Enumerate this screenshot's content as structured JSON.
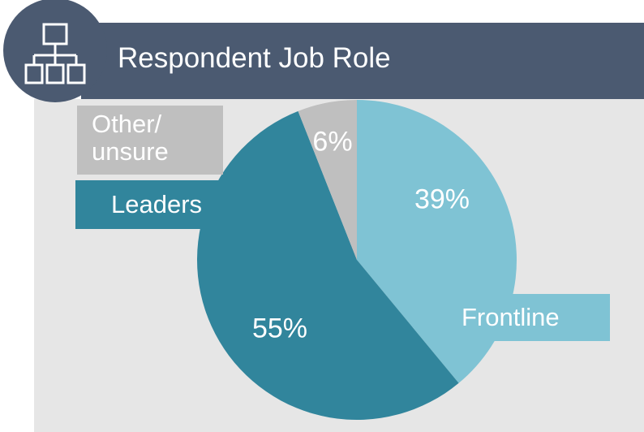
{
  "chart_data": {
    "type": "pie",
    "title": "Respondent Job Role",
    "categories": [
      "Frontline",
      "Leaders",
      "Other/ unsure"
    ],
    "values": [
      39,
      55,
      6
    ],
    "value_labels": [
      "39%",
      "55%",
      "6%"
    ],
    "colors": [
      "#7fc3d4",
      "#31859c",
      "#bfbfbf"
    ]
  }
}
